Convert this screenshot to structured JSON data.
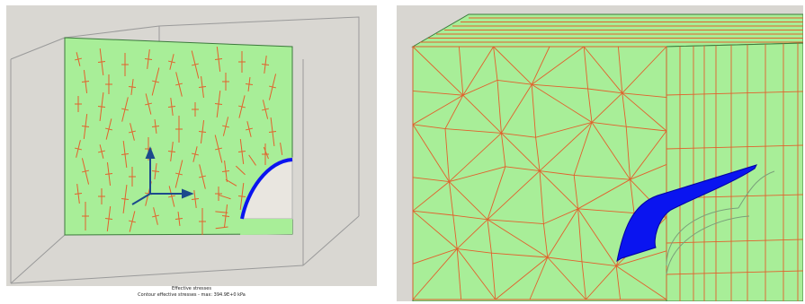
{
  "colors": {
    "mesh_fill": "#a8ee98",
    "mesh_lines": "#e2602c",
    "highlight_surface": "#0a14f0",
    "box_lines": "#9a9a9a",
    "axis_arrows": "#1c4a8c",
    "background": "#d9d7d2"
  },
  "left_figure": {
    "caption_line1": "Effective stresses",
    "caption_line2": "Contour effective stresses - max: 394.9E+0 kPa"
  },
  "right_figure": {}
}
